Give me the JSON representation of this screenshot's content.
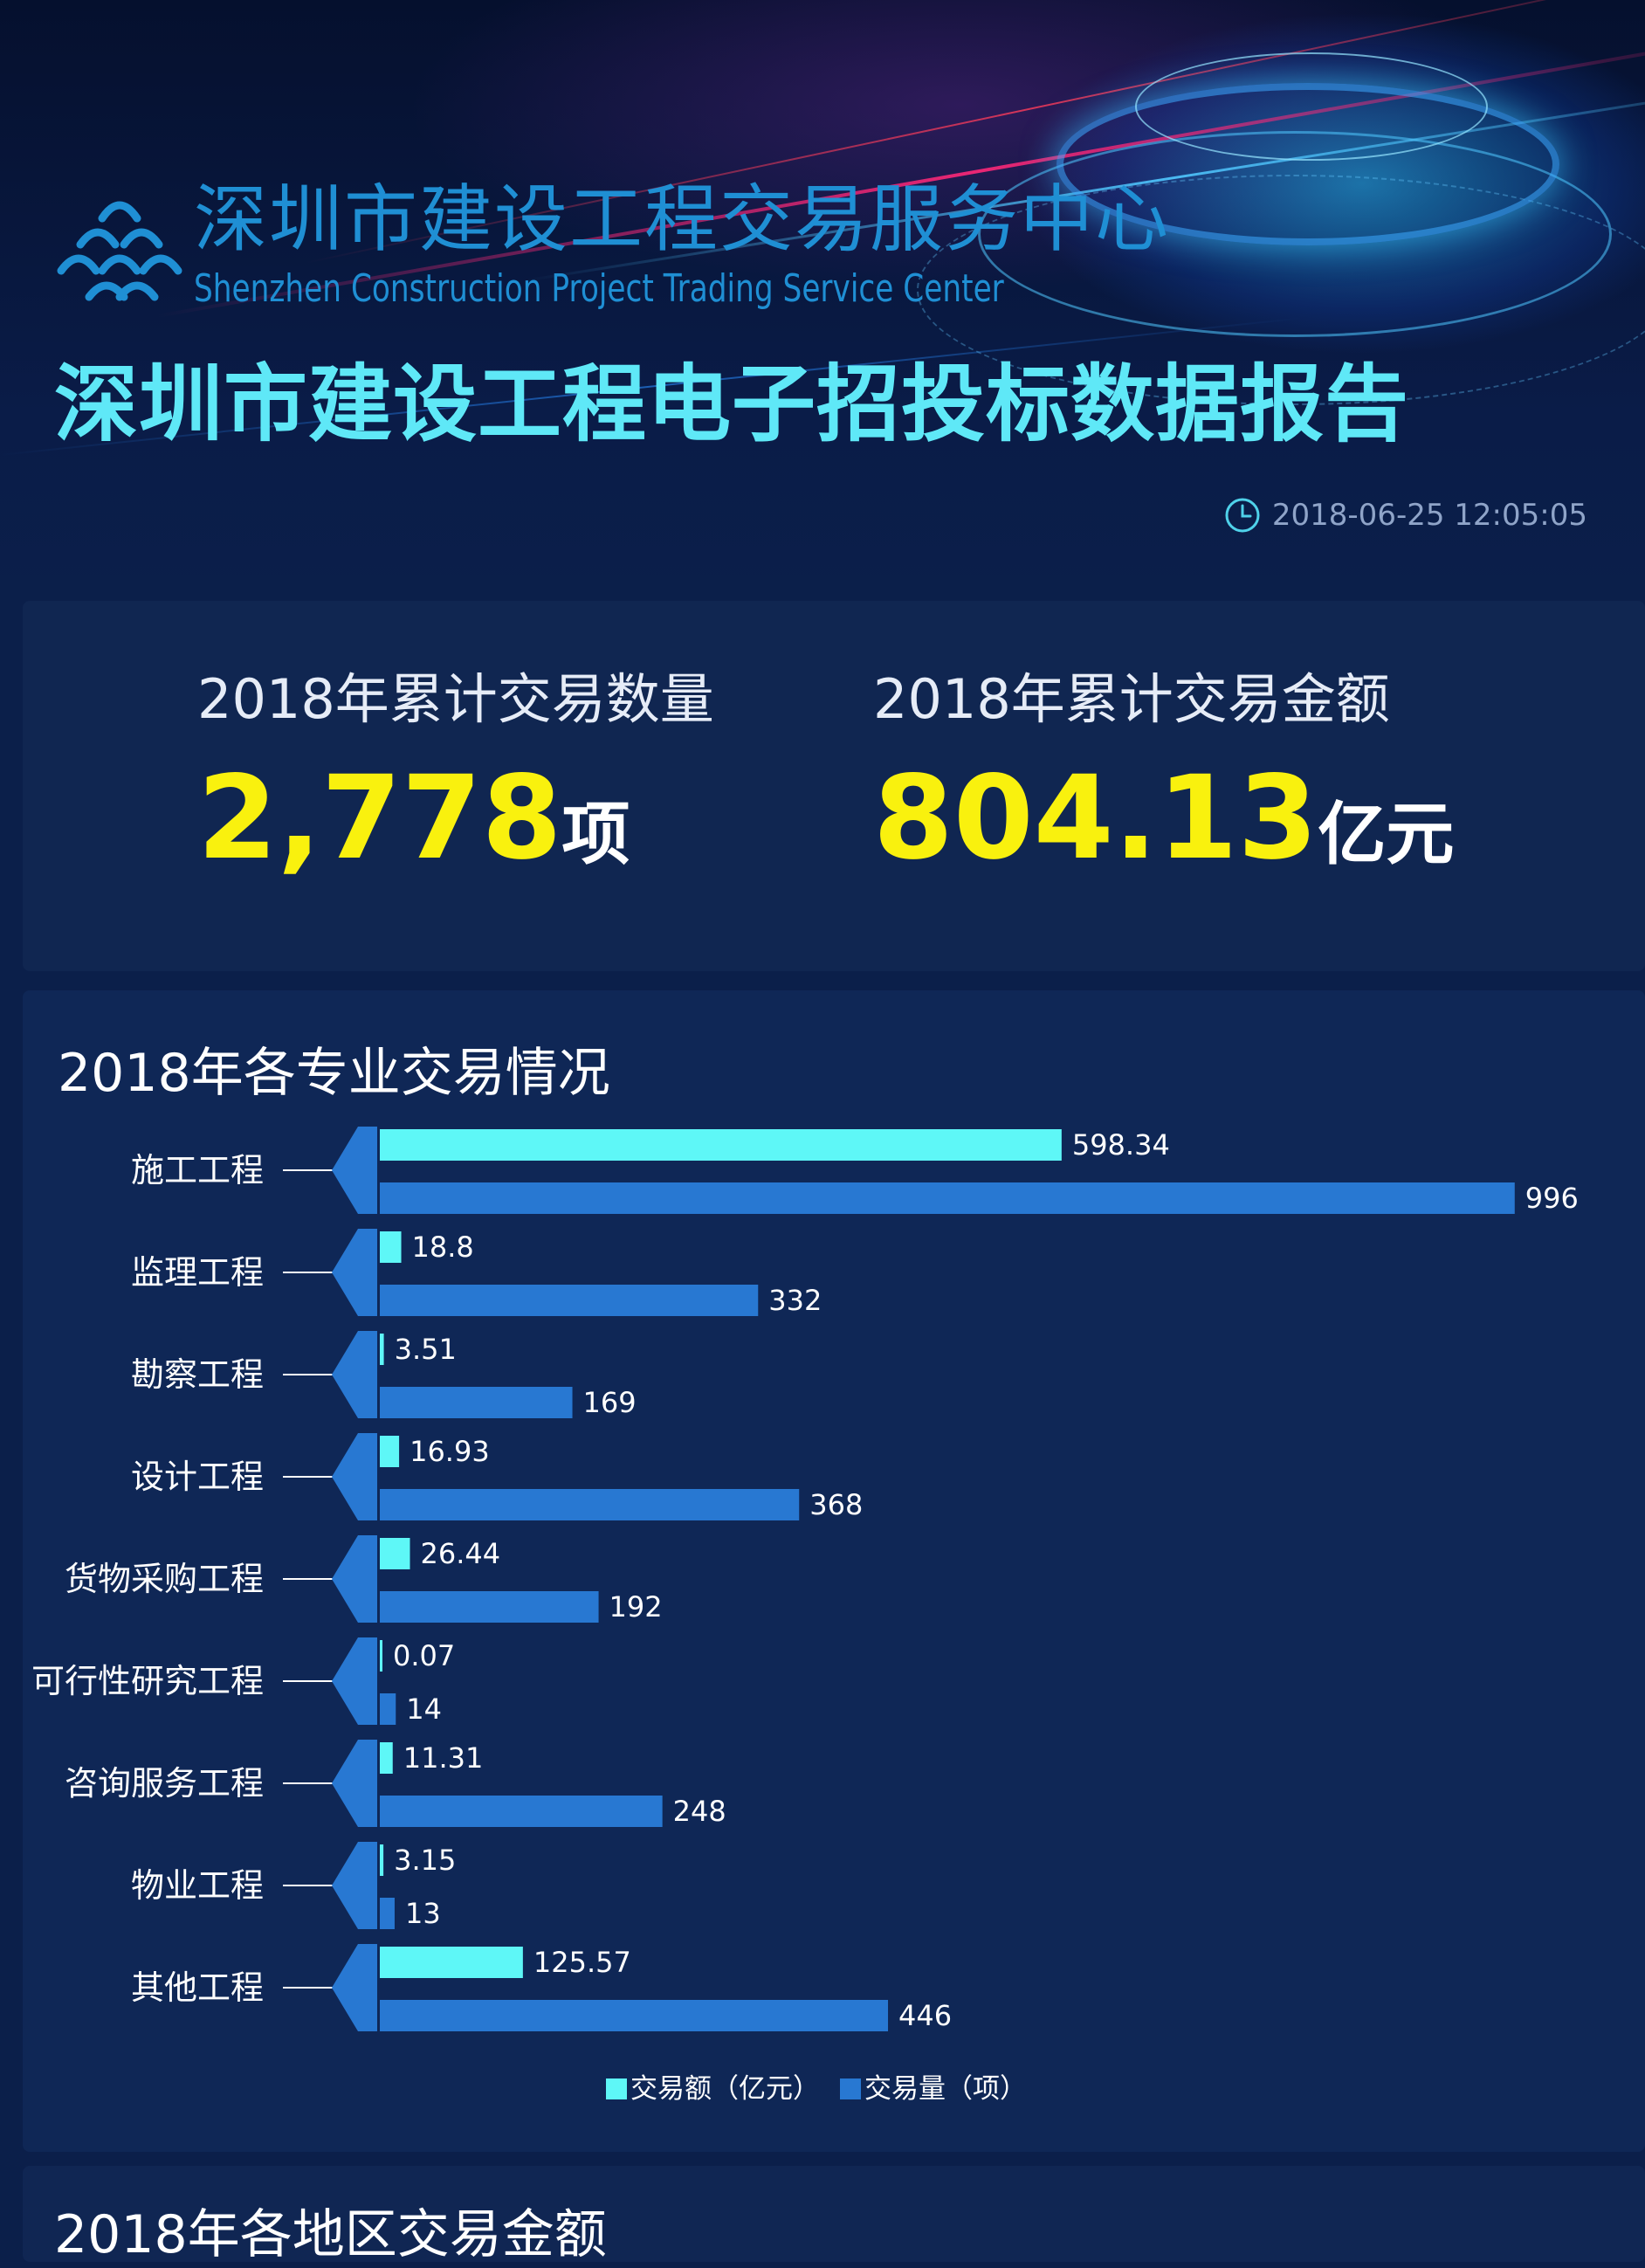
{
  "header": {
    "org_cn": "深圳市建设工程交易服务中心",
    "org_en": "Shenzhen Construction Project Trading Service Center",
    "report_title": "深圳市建设工程电子招投标数据报告",
    "timestamp": "2018-06-25 12:05:05",
    "icons": [
      "logo-icon",
      "clock-icon"
    ]
  },
  "kpis": [
    {
      "label": "2018年累计交易数量",
      "value": "2,778",
      "unit": "项"
    },
    {
      "label": "2018年累计交易金额",
      "value": "804.13",
      "unit": "亿元"
    }
  ],
  "sections": {
    "specialty_title": "2018年各专业交易情况",
    "region_title": "2018年各地区交易金额"
  },
  "chart_data": {
    "type": "bar",
    "orientation": "horizontal",
    "title": "2018年各专业交易情况",
    "categories": [
      "施工工程",
      "监理工程",
      "勘察工程",
      "设计工程",
      "货物采购工程",
      "可行性研究工程",
      "咨询服务工程",
      "物业工程",
      "其他工程"
    ],
    "series": [
      {
        "name": "交易额（亿元）",
        "color": "#5ef7f7",
        "values": [
          598.34,
          18.8,
          3.51,
          16.93,
          26.44,
          0.07,
          11.31,
          3.15,
          125.57
        ]
      },
      {
        "name": "交易量（项）",
        "color": "#2878d2",
        "values": [
          996,
          332,
          169,
          368,
          192,
          14,
          248,
          13,
          446
        ]
      }
    ],
    "xlim": [
      0,
      1000
    ],
    "grid": false,
    "legend_position": "bottom-center",
    "data_labels": true
  }
}
